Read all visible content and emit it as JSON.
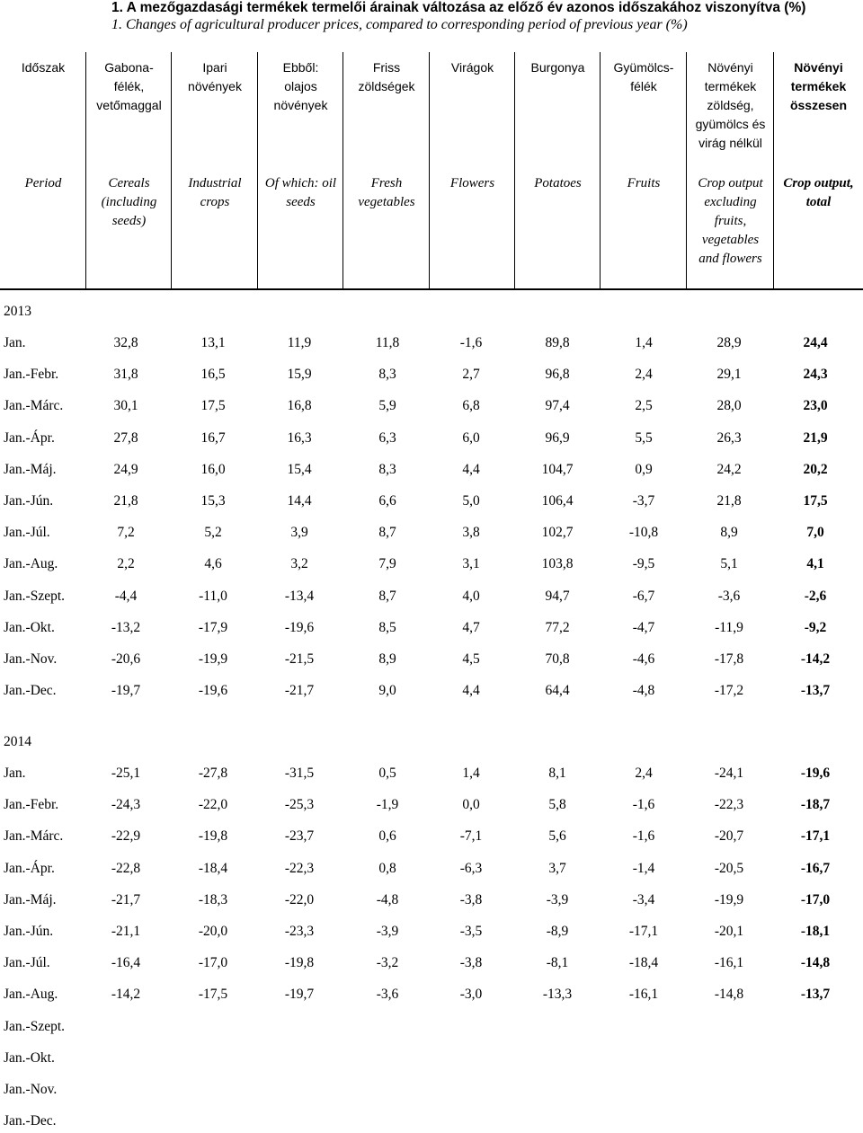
{
  "title": {
    "hu": "1.  A mezőgazdasági termékek termelői árainak változása az előző év azonos időszakához viszonyítva (%)",
    "en": "1. Changes of agricultural producer prices, compared to corresponding period of previous year (%)"
  },
  "columns": [
    {
      "hu": [
        "Időszak"
      ],
      "en": [
        "Period"
      ]
    },
    {
      "hu": [
        "Gabona-",
        "félék,",
        "vetőmaggal"
      ],
      "en": [
        "Cereals",
        "(including",
        "seeds)"
      ]
    },
    {
      "hu": [
        "Ipari",
        "növények"
      ],
      "en": [
        "Industrial",
        "crops"
      ]
    },
    {
      "hu": [
        "Ebből:",
        "olajos",
        "növények"
      ],
      "en": [
        "Of which: oil",
        "seeds"
      ]
    },
    {
      "hu": [
        "Friss",
        "zöldségek"
      ],
      "en": [
        "Fresh",
        "vegetables"
      ]
    },
    {
      "hu": [
        "Virágok"
      ],
      "en": [
        "Flowers"
      ]
    },
    {
      "hu": [
        "Burgonya"
      ],
      "en": [
        "Potatoes"
      ]
    },
    {
      "hu": [
        "Gyümölcs-",
        "félék"
      ],
      "en": [
        "Fruits"
      ]
    },
    {
      "hu": [
        "Növényi",
        "termékek",
        "zöldség,",
        "gyümölcs és",
        "virág nélkül"
      ],
      "en": [
        "Crop output",
        "excluding",
        "fruits,",
        "vegetables",
        "and flowers"
      ]
    },
    {
      "hu": [
        "Növényi",
        "termékek",
        "összesen"
      ],
      "en": [
        "Crop output,",
        "total"
      ]
    }
  ],
  "sections": [
    {
      "year": "2013",
      "rows": [
        {
          "period": "Jan.",
          "values": [
            "32,8",
            "13,1",
            "11,9",
            "11,8",
            "-1,6",
            "89,8",
            "1,4",
            "28,9",
            "24,4"
          ]
        },
        {
          "period": "Jan.-Febr.",
          "values": [
            "31,8",
            "16,5",
            "15,9",
            "8,3",
            "2,7",
            "96,8",
            "2,4",
            "29,1",
            "24,3"
          ]
        },
        {
          "period": "Jan.-Márc.",
          "values": [
            "30,1",
            "17,5",
            "16,8",
            "5,9",
            "6,8",
            "97,4",
            "2,5",
            "28,0",
            "23,0"
          ]
        },
        {
          "period": "Jan.-Ápr.",
          "values": [
            "27,8",
            "16,7",
            "16,3",
            "6,3",
            "6,0",
            "96,9",
            "5,5",
            "26,3",
            "21,9"
          ]
        },
        {
          "period": "Jan.-Máj.",
          "values": [
            "24,9",
            "16,0",
            "15,4",
            "8,3",
            "4,4",
            "104,7",
            "0,9",
            "24,2",
            "20,2"
          ]
        },
        {
          "period": "Jan.-Jún.",
          "values": [
            "21,8",
            "15,3",
            "14,4",
            "6,6",
            "5,0",
            "106,4",
            "-3,7",
            "21,8",
            "17,5"
          ]
        },
        {
          "period": "Jan.-Júl.",
          "values": [
            "7,2",
            "5,2",
            "3,9",
            "8,7",
            "3,8",
            "102,7",
            "-10,8",
            "8,9",
            "7,0"
          ]
        },
        {
          "period": "Jan.-Aug.",
          "values": [
            "2,2",
            "4,6",
            "3,2",
            "7,9",
            "3,1",
            "103,8",
            "-9,5",
            "5,1",
            "4,1"
          ]
        },
        {
          "period": "Jan.-Szept.",
          "values": [
            "-4,4",
            "-11,0",
            "-13,4",
            "8,7",
            "4,0",
            "94,7",
            "-6,7",
            "-3,6",
            "-2,6"
          ]
        },
        {
          "period": "Jan.-Okt.",
          "values": [
            "-13,2",
            "-17,9",
            "-19,6",
            "8,5",
            "4,7",
            "77,2",
            "-4,7",
            "-11,9",
            "-9,2"
          ]
        },
        {
          "period": "Jan.-Nov.",
          "values": [
            "-20,6",
            "-19,9",
            "-21,5",
            "8,9",
            "4,5",
            "70,8",
            "-4,6",
            "-17,8",
            "-14,2"
          ]
        },
        {
          "period": "Jan.-Dec.",
          "values": [
            "-19,7",
            "-19,6",
            "-21,7",
            "9,0",
            "4,4",
            "64,4",
            "-4,8",
            "-17,2",
            "-13,7"
          ]
        }
      ]
    },
    {
      "year": "2014",
      "rows": [
        {
          "period": "Jan.",
          "values": [
            "-25,1",
            "-27,8",
            "-31,5",
            "0,5",
            "1,4",
            "8,1",
            "2,4",
            "-24,1",
            "-19,6"
          ]
        },
        {
          "period": "Jan.-Febr.",
          "values": [
            "-24,3",
            "-22,0",
            "-25,3",
            "-1,9",
            "0,0",
            "5,8",
            "-1,6",
            "-22,3",
            "-18,7"
          ]
        },
        {
          "period": "Jan.-Márc.",
          "values": [
            "-22,9",
            "-19,8",
            "-23,7",
            "0,6",
            "-7,1",
            "5,6",
            "-1,6",
            "-20,7",
            "-17,1"
          ]
        },
        {
          "period": "Jan.-Ápr.",
          "values": [
            "-22,8",
            "-18,4",
            "-22,3",
            "0,8",
            "-6,3",
            "3,7",
            "-1,4",
            "-20,5",
            "-16,7"
          ]
        },
        {
          "period": "Jan.-Máj.",
          "values": [
            "-21,7",
            "-18,3",
            "-22,0",
            "-4,8",
            "-3,8",
            "-3,9",
            "-3,4",
            "-19,9",
            "-17,0"
          ]
        },
        {
          "period": "Jan.-Jún.",
          "values": [
            "-21,1",
            "-20,0",
            "-23,3",
            "-3,9",
            "-3,5",
            "-8,9",
            "-17,1",
            "-20,1",
            "-18,1"
          ]
        },
        {
          "period": "Jan.-Júl.",
          "values": [
            "-16,4",
            "-17,0",
            "-19,8",
            "-3,2",
            "-3,8",
            "-8,1",
            "-18,4",
            "-16,1",
            "-14,8"
          ]
        },
        {
          "period": "Jan.-Aug.",
          "values": [
            "-14,2",
            "-17,5",
            "-19,7",
            "-3,6",
            "-3,0",
            "-13,3",
            "-16,1",
            "-14,8",
            "-13,7"
          ]
        },
        {
          "period": "Jan.-Szept.",
          "values": []
        },
        {
          "period": "Jan.-Okt.",
          "values": []
        },
        {
          "period": "Jan.-Nov.",
          "values": []
        },
        {
          "period": "Jan.-Dec.",
          "values": []
        }
      ]
    }
  ]
}
